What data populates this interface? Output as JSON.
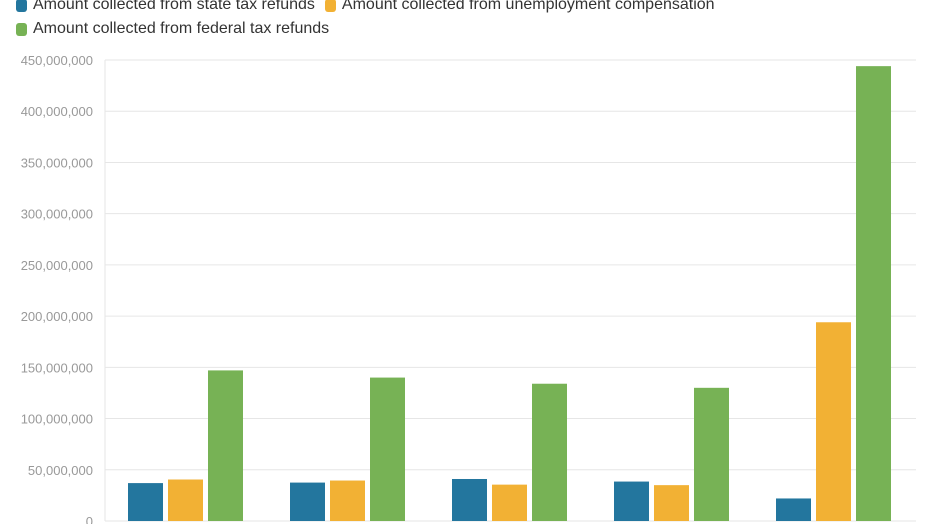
{
  "legend": {
    "state": "Amount collected from state tax refunds",
    "unemployment": "Amount collected from unemployment compensation",
    "federal": "Amount collected from federal tax refunds"
  },
  "colors": {
    "state": "#23769e",
    "unemployment": "#f2b134",
    "federal": "#77b255",
    "grid": "#e6e6e6",
    "tick_text": "#999999"
  },
  "chart_data": {
    "type": "bar",
    "title": "",
    "xlabel": "",
    "ylabel": "",
    "categories": [
      "",
      "",
      "",
      "",
      ""
    ],
    "ylim": [
      0,
      450000000
    ],
    "yticks": [
      0,
      50000000,
      100000000,
      150000000,
      200000000,
      250000000,
      300000000,
      350000000,
      400000000,
      450000000
    ],
    "ytick_labels": [
      "0",
      "50,000,000",
      "100,000,000",
      "150,000,000",
      "200,000,000",
      "250,000,000",
      "300,000,000",
      "350,000,000",
      "400,000,000",
      "450,000,000"
    ],
    "grid": true,
    "legend_position": "top-left",
    "series": [
      {
        "name": "Amount collected from state tax refunds",
        "color_key": "state",
        "values": [
          37000000,
          37500000,
          41000000,
          38500000,
          22000000
        ]
      },
      {
        "name": "Amount collected from unemployment compensation",
        "color_key": "unemployment",
        "values": [
          40500000,
          39500000,
          35500000,
          35000000,
          194000000
        ]
      },
      {
        "name": "Amount collected from federal tax refunds",
        "color_key": "federal",
        "values": [
          147000000,
          140000000,
          134000000,
          130000000,
          444000000
        ]
      }
    ]
  }
}
